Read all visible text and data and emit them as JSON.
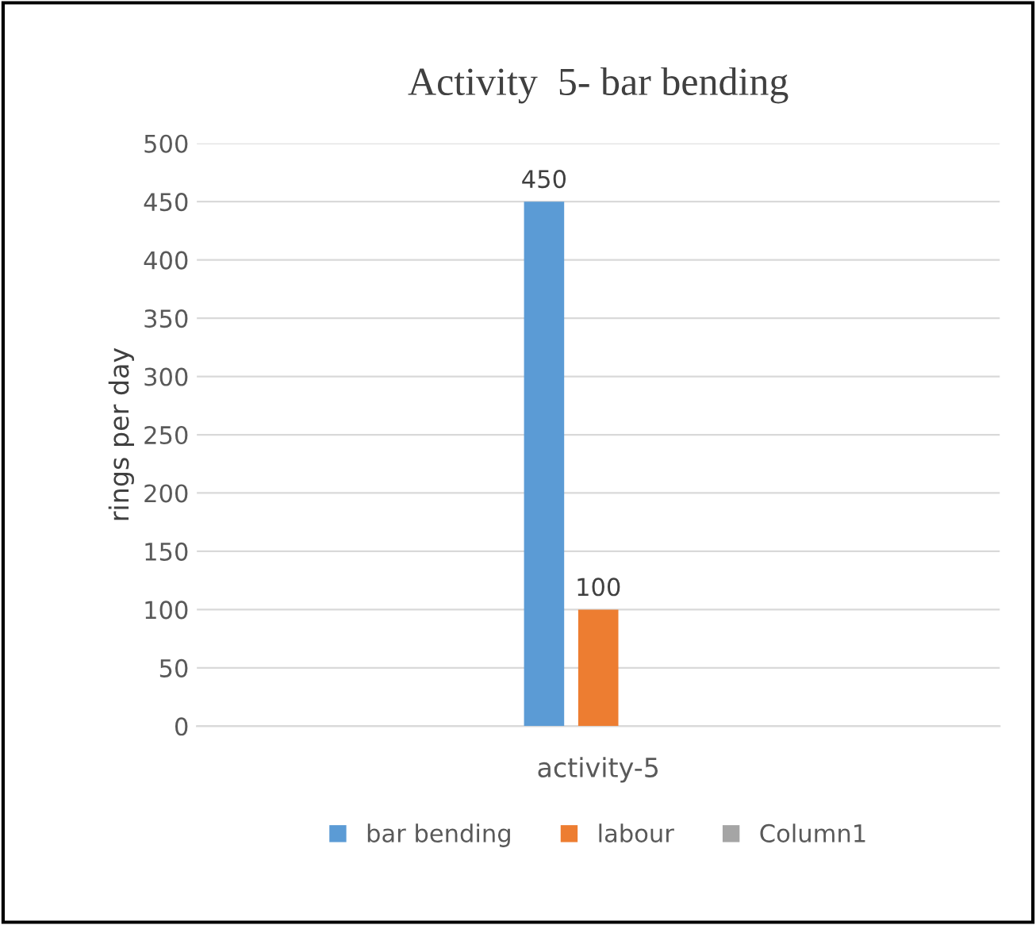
{
  "chart_data": {
    "type": "bar",
    "title": "Activity  5- bar bending",
    "ylabel": "rings per day",
    "categories": [
      "activity-5"
    ],
    "series": [
      {
        "name": "bar bending",
        "color": "#5b9bd5",
        "values": [
          450
        ]
      },
      {
        "name": "labour",
        "color": "#ed7d31",
        "values": [
          100
        ]
      },
      {
        "name": "Column1",
        "color": "#a5a5a5",
        "values": [
          null
        ]
      }
    ],
    "ylim": [
      0,
      500
    ],
    "yticks": [
      0,
      50,
      100,
      150,
      200,
      250,
      300,
      350,
      400,
      450,
      500
    ],
    "grid": "y",
    "legend": "bottom",
    "data_labels": true
  }
}
